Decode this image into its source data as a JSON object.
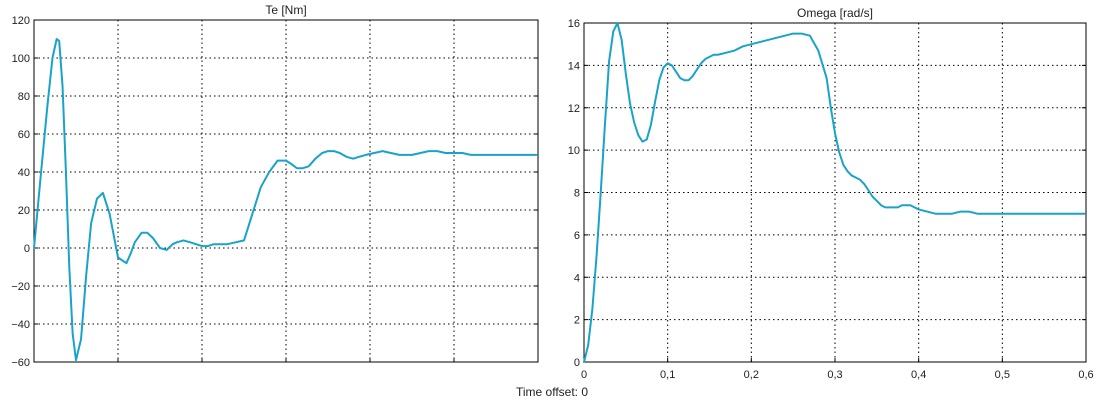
{
  "footer": {
    "label": "Time offset:",
    "value": "0"
  },
  "colors": {
    "series": "#1aa3c8",
    "grid": "#000000",
    "axes": "#000000",
    "background": "#ffffff"
  },
  "chart_data": [
    {
      "type": "line",
      "title": "Te [Nm]",
      "xlabel": "",
      "ylabel": "",
      "xlim": [
        0,
        0.6
      ],
      "ylim": [
        -60,
        120
      ],
      "yticks": [
        -60,
        -40,
        -20,
        0,
        20,
        40,
        60,
        80,
        100,
        120
      ],
      "ytick_labels": [
        "−60",
        "−40",
        "−20",
        "0",
        "20",
        "40",
        "60",
        "80",
        "100",
        "120"
      ],
      "xticks": [
        0,
        0.1,
        0.2,
        0.3,
        0.4,
        0.5,
        0.6
      ],
      "xtick_labels": [],
      "grid": true,
      "series": [
        {
          "x": [
            0,
            0.008,
            0.016,
            0.022,
            0.027,
            0.03,
            0.034,
            0.038,
            0.042,
            0.046,
            0.05,
            0.056,
            0.062,
            0.068,
            0.075,
            0.082,
            0.09,
            0.1,
            0.11,
            0.115,
            0.12,
            0.128,
            0.135,
            0.142,
            0.15,
            0.158,
            0.165,
            0.17,
            0.178,
            0.186,
            0.193,
            0.2,
            0.207,
            0.214,
            0.222,
            0.23,
            0.24,
            0.25,
            0.26,
            0.27,
            0.28,
            0.29,
            0.3,
            0.307,
            0.313,
            0.32,
            0.327,
            0.335,
            0.343,
            0.35,
            0.357,
            0.364,
            0.372,
            0.38,
            0.387,
            0.395,
            0.405,
            0.415,
            0.425,
            0.435,
            0.45,
            0.46,
            0.47,
            0.48,
            0.49,
            0.5,
            0.51,
            0.52,
            0.53,
            0.54,
            0.55,
            0.56,
            0.57,
            0.58,
            0.59,
            0.598
          ],
          "y": [
            0,
            38,
            75,
            100,
            110,
            109,
            85,
            40,
            -10,
            -45,
            -59,
            -48,
            -15,
            13,
            26,
            29,
            18,
            -5,
            -8,
            -3,
            3,
            8,
            8,
            5,
            0,
            -1,
            2,
            3,
            4,
            3,
            2,
            1,
            1,
            2,
            2,
            2,
            3,
            4,
            18,
            32,
            40,
            46,
            46,
            44,
            42,
            42,
            43,
            47,
            50,
            51,
            51,
            50,
            48,
            47,
            48,
            49,
            50,
            51,
            50,
            49,
            49,
            50,
            51,
            51,
            50,
            50,
            50,
            49,
            49,
            49,
            49,
            49,
            49,
            49,
            49,
            49
          ]
        }
      ]
    },
    {
      "type": "line",
      "title": "Omega [rad/s]",
      "xlabel": "",
      "ylabel": "",
      "xlim": [
        0,
        0.6
      ],
      "ylim": [
        0,
        16
      ],
      "yticks": [
        0,
        2,
        4,
        6,
        8,
        10,
        12,
        14,
        16
      ],
      "ytick_labels": [
        "0",
        "2",
        "4",
        "6",
        "8",
        "10",
        "12",
        "14",
        "16"
      ],
      "xticks": [
        0,
        0.1,
        0.2,
        0.3,
        0.4,
        0.5,
        0.6
      ],
      "xtick_labels": [
        "0",
        "0,1",
        "0,2",
        "0,3",
        "0,4",
        "0,5",
        "0,6"
      ],
      "grid": true,
      "series": [
        {
          "x": [
            0,
            0.005,
            0.01,
            0.015,
            0.02,
            0.025,
            0.03,
            0.035,
            0.04,
            0.045,
            0.05,
            0.055,
            0.06,
            0.065,
            0.07,
            0.075,
            0.08,
            0.085,
            0.09,
            0.095,
            0.1,
            0.105,
            0.11,
            0.115,
            0.12,
            0.125,
            0.13,
            0.135,
            0.14,
            0.145,
            0.15,
            0.155,
            0.16,
            0.17,
            0.18,
            0.19,
            0.2,
            0.21,
            0.22,
            0.23,
            0.24,
            0.25,
            0.26,
            0.27,
            0.28,
            0.29,
            0.295,
            0.3,
            0.305,
            0.31,
            0.315,
            0.32,
            0.325,
            0.33,
            0.335,
            0.34,
            0.345,
            0.35,
            0.355,
            0.36,
            0.365,
            0.37,
            0.375,
            0.38,
            0.39,
            0.4,
            0.41,
            0.42,
            0.43,
            0.44,
            0.45,
            0.46,
            0.47,
            0.48,
            0.49,
            0.5,
            0.51,
            0.52,
            0.53,
            0.54,
            0.55,
            0.56,
            0.57,
            0.58,
            0.59,
            0.598
          ],
          "y": [
            0,
            0.8,
            2.5,
            5,
            8,
            11.2,
            14.2,
            15.6,
            16,
            15.2,
            13.6,
            12.2,
            11.3,
            10.7,
            10.4,
            10.5,
            11.2,
            12.3,
            13.3,
            13.9,
            14.1,
            14.0,
            13.7,
            13.4,
            13.3,
            13.3,
            13.5,
            13.8,
            14.1,
            14.3,
            14.4,
            14.5,
            14.5,
            14.6,
            14.7,
            14.9,
            15.0,
            15.1,
            15.2,
            15.3,
            15.4,
            15.5,
            15.5,
            15.4,
            14.7,
            13.4,
            12.0,
            10.8,
            9.9,
            9.3,
            9.0,
            8.8,
            8.7,
            8.6,
            8.4,
            8.1,
            7.8,
            7.6,
            7.4,
            7.3,
            7.3,
            7.3,
            7.3,
            7.4,
            7.4,
            7.2,
            7.1,
            7.0,
            7.0,
            7.0,
            7.1,
            7.1,
            7.0,
            7.0,
            7.0,
            7.0,
            7.0,
            7.0,
            7.0,
            7.0,
            7.0,
            7.0,
            7.0,
            7.0,
            7.0,
            7.0
          ]
        }
      ]
    }
  ]
}
